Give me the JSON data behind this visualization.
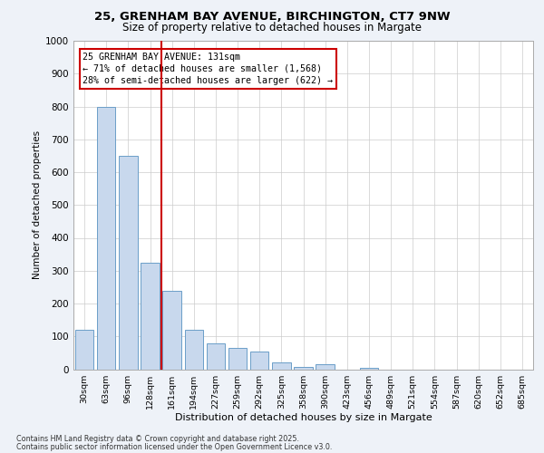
{
  "title_line1": "25, GRENHAM BAY AVENUE, BIRCHINGTON, CT7 9NW",
  "title_line2": "Size of property relative to detached houses in Margate",
  "xlabel": "Distribution of detached houses by size in Margate",
  "ylabel": "Number of detached properties",
  "categories": [
    "30sqm",
    "63sqm",
    "96sqm",
    "128sqm",
    "161sqm",
    "194sqm",
    "227sqm",
    "259sqm",
    "292sqm",
    "325sqm",
    "358sqm",
    "390sqm",
    "423sqm",
    "456sqm",
    "489sqm",
    "521sqm",
    "554sqm",
    "587sqm",
    "620sqm",
    "652sqm",
    "685sqm"
  ],
  "values": [
    120,
    800,
    650,
    325,
    240,
    120,
    80,
    65,
    55,
    20,
    8,
    15,
    0,
    5,
    0,
    0,
    0,
    0,
    0,
    0,
    0
  ],
  "bar_color": "#c8d8ed",
  "bar_edge_color": "#6b9ec8",
  "vline_x": 3.5,
  "annotation_box_text": "25 GRENHAM BAY AVENUE: 131sqm\n← 71% of detached houses are smaller (1,568)\n28% of semi-detached houses are larger (622) →",
  "vline_color": "#cc0000",
  "box_edge_color": "#cc0000",
  "ylim": [
    0,
    1000
  ],
  "yticks": [
    0,
    100,
    200,
    300,
    400,
    500,
    600,
    700,
    800,
    900,
    1000
  ],
  "footer_line1": "Contains HM Land Registry data © Crown copyright and database right 2025.",
  "footer_line2": "Contains public sector information licensed under the Open Government Licence v3.0.",
  "bg_color": "#eef2f8",
  "plot_bg_color": "#ffffff",
  "grid_color": "#cccccc"
}
